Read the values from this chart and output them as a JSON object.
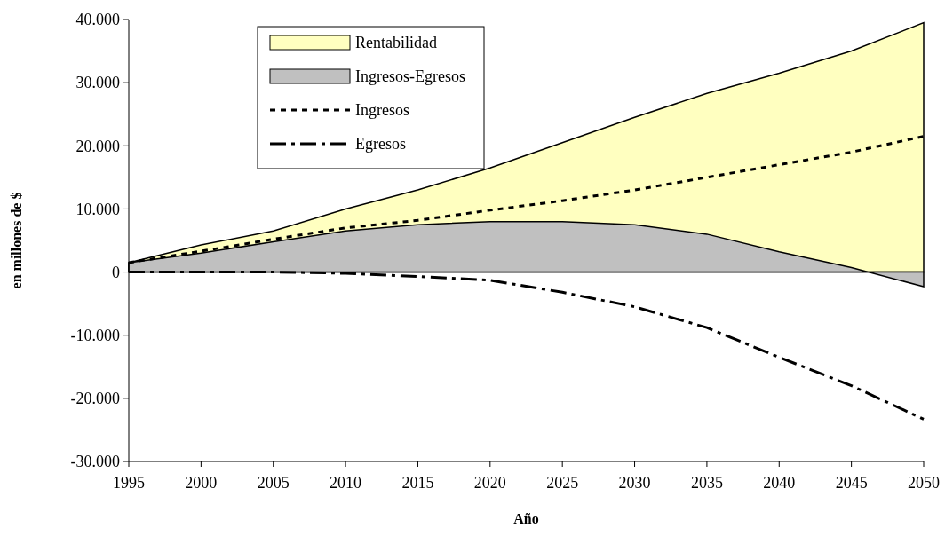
{
  "chart_data": {
    "type": "area",
    "xlabel": "Año",
    "ylabel": "en millones de $",
    "legend": "top left",
    "x": [
      1995,
      2000,
      2005,
      2010,
      2015,
      2020,
      2025,
      2030,
      2035,
      2040,
      2045,
      2050
    ],
    "series": [
      {
        "name": "Ingresos-Egresos",
        "color": "#c0c0c0",
        "values": [
          1500,
          3000,
          4800,
          6500,
          7500,
          8000,
          8000,
          7500,
          6000,
          3200,
          700,
          -2300
        ]
      },
      {
        "name": "Rentabilidad",
        "color": "#ffffc0",
        "values": [
          1500,
          4300,
          6500,
          10000,
          13000,
          16500,
          20500,
          24500,
          28300,
          31500,
          35000,
          39500
        ]
      },
      {
        "name": "Ingresos",
        "type": "line",
        "color": "#000000",
        "line_style": "dotted",
        "values": [
          1500,
          3300,
          5200,
          7000,
          8200,
          9800,
          11300,
          13000,
          15000,
          17000,
          19000,
          21500
        ]
      },
      {
        "name": "Egresos",
        "type": "line",
        "color": "#000000",
        "line_style": "dashed",
        "values": [
          0,
          0,
          0,
          -200,
          -700,
          -1300,
          -3200,
          -5500,
          -8800,
          -13500,
          -18000,
          -23300
        ]
      }
    ],
    "xlim": [
      1995,
      2050
    ],
    "xticks": [
      1995,
      2000,
      2005,
      2010,
      2015,
      2020,
      2025,
      2030,
      2035,
      2040,
      2045,
      2050
    ],
    "ylim": [
      -30000,
      40000
    ],
    "yticks": [
      {
        "value": -30000,
        "label": "-30.000"
      },
      {
        "value": -20000,
        "label": "-20.000"
      },
      {
        "value": -10000,
        "label": "-10.000"
      },
      0,
      {
        "value": 10000,
        "label": "10.000"
      },
      {
        "value": 20000,
        "label": "20.000"
      },
      {
        "value": 30000,
        "label": "30.000"
      },
      {
        "value": 40000,
        "label": "40.000"
      }
    ]
  }
}
